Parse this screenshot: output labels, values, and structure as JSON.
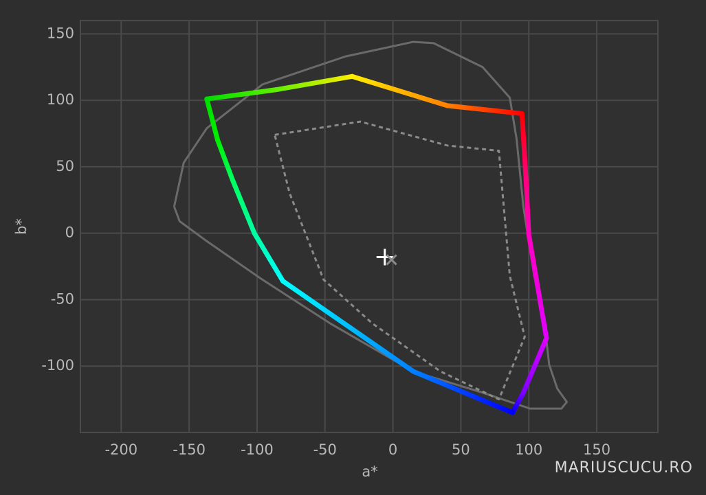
{
  "chart_data": {
    "type": "line",
    "xlabel": "a*",
    "ylabel": "b*",
    "xlim": [
      -230,
      195
    ],
    "ylim": [
      -150,
      160
    ],
    "xticks": [
      -200,
      -150,
      -100,
      -50,
      0,
      50,
      100,
      150
    ],
    "yticks": [
      -100,
      -50,
      0,
      50,
      100,
      150
    ],
    "grid": true,
    "watermark": "MARIUSCUCU.RO",
    "series": [
      {
        "color": "#6a6a6a",
        "style": "solid",
        "x": [
          -161,
          -154,
          -137,
          -96,
          -35,
          15,
          30,
          66,
          86,
          91,
          96,
          104,
          111,
          115,
          121,
          128,
          124,
          101,
          66,
          15,
          -46,
          -96,
          -137,
          -157,
          -161
        ],
        "values": [
          20,
          53,
          79,
          112,
          133,
          144,
          143,
          125,
          102,
          71,
          20,
          -32,
          -63,
          -99,
          -117,
          -127,
          -132,
          -132,
          -120,
          -104,
          -68,
          -35,
          -6,
          9,
          20
        ]
      },
      {
        "color": "#8a8a8a",
        "style": "dashed",
        "x": [
          -87,
          -24,
          40,
          78,
          86,
          97,
          78,
          35,
          -15,
          -51,
          -76,
          -87
        ],
        "values": [
          74,
          84,
          66,
          62,
          -32,
          -78,
          -125,
          -104,
          -68,
          -35,
          30,
          74
        ]
      },
      {
        "colors": [
          "#ffee00",
          "#ff8000",
          "#ff0000",
          "#ff0080",
          "#ff00c0",
          "#e000ff",
          "#8000ff",
          "#0000ff",
          "#0080ff",
          "#00ffff",
          "#00ffa0",
          "#00ff60",
          "#00ee00",
          "#00dd00",
          "#60ee00",
          "#ffee00"
        ],
        "style": "gradient",
        "x": [
          -30,
          40,
          95,
          98,
          100,
          113,
          96,
          88,
          15,
          -81,
          -102,
          -118,
          -129,
          -137,
          -86,
          -30
        ],
        "values": [
          118,
          96,
          90,
          40,
          -1,
          -79,
          -120,
          -135,
          -104,
          -36,
          0,
          40,
          70,
          101,
          108,
          118
        ]
      },
      {
        "color": "#ffffff",
        "style": "plus",
        "x": [
          -6
        ],
        "values": [
          -18
        ]
      },
      {
        "color": "#8a8a8a",
        "style": "cross",
        "x": [
          -1
        ],
        "values": [
          -20
        ]
      }
    ]
  }
}
